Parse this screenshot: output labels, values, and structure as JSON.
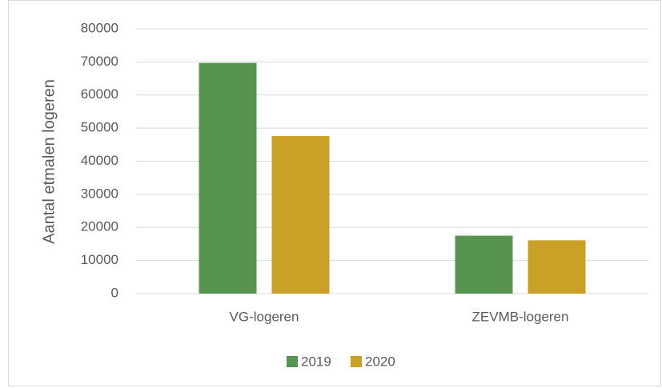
{
  "chart_data": {
    "type": "bar",
    "ylabel": "Aantal etmalen logeren",
    "categories": [
      "VG-logeren",
      "ZEVMB-logeren"
    ],
    "series": [
      {
        "name": "2019",
        "color": "#57944f",
        "values": [
          69700,
          17500
        ]
      },
      {
        "name": "2020",
        "color": "#cba026",
        "values": [
          47600,
          16100
        ]
      }
    ],
    "ylim": [
      0,
      80000
    ],
    "yticks": [
      0,
      10000,
      20000,
      30000,
      40000,
      50000,
      60000,
      70000,
      80000
    ],
    "grid": true,
    "legend": "bottom"
  }
}
